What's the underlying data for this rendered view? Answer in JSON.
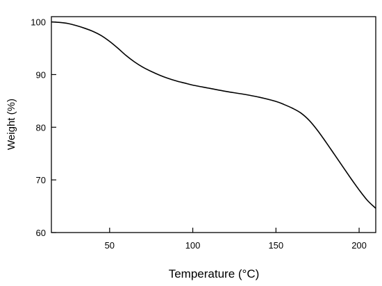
{
  "chart_data": {
    "type": "line",
    "title": "",
    "xlabel": "Temperature (°C)",
    "ylabel": "Weight (%)",
    "xlim": [
      15,
      210
    ],
    "ylim": [
      60,
      101
    ],
    "x_ticks": [
      50,
      100,
      150,
      200
    ],
    "y_ticks": [
      60,
      70,
      80,
      90,
      100
    ],
    "grid": false,
    "legend": "none",
    "series": [
      {
        "color": "#000000",
        "x": [
          15,
          20,
          25,
          30,
          35,
          40,
          45,
          50,
          55,
          60,
          65,
          70,
          75,
          80,
          85,
          90,
          95,
          100,
          110,
          120,
          130,
          140,
          150,
          155,
          160,
          165,
          170,
          175,
          180,
          185,
          190,
          195,
          200,
          205,
          210
        ],
        "y": [
          100.0,
          99.9,
          99.7,
          99.3,
          98.8,
          98.2,
          97.4,
          96.3,
          95.0,
          93.6,
          92.4,
          91.4,
          90.6,
          89.9,
          89.3,
          88.8,
          88.4,
          88.0,
          87.4,
          86.8,
          86.3,
          85.7,
          84.9,
          84.3,
          83.6,
          82.7,
          81.3,
          79.4,
          77.2,
          74.9,
          72.6,
          70.3,
          68.1,
          66.1,
          64.6
        ]
      }
    ]
  }
}
